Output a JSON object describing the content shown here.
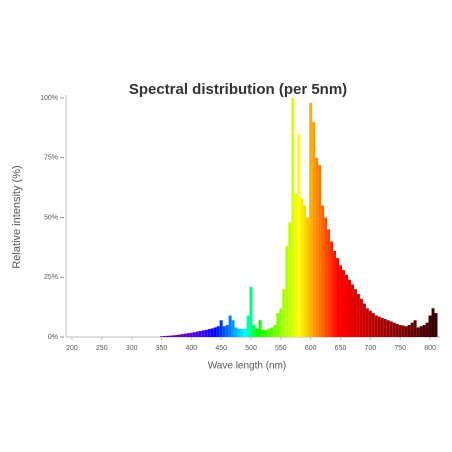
{
  "chart_data": {
    "type": "bar",
    "title": "Spectral distribution (per 5nm)",
    "x_label": "Wave length (nm)",
    "y_label": "Relative intensity (%)",
    "colormap": "wavelength",
    "x": [
      200,
      205,
      210,
      215,
      220,
      225,
      230,
      235,
      240,
      245,
      250,
      255,
      260,
      265,
      270,
      275,
      280,
      285,
      290,
      295,
      300,
      305,
      310,
      315,
      320,
      325,
      330,
      335,
      340,
      345,
      350,
      355,
      360,
      365,
      370,
      375,
      380,
      385,
      390,
      395,
      400,
      405,
      410,
      415,
      420,
      425,
      430,
      435,
      440,
      445,
      450,
      455,
      460,
      465,
      470,
      475,
      480,
      485,
      490,
      495,
      500,
      505,
      510,
      515,
      520,
      525,
      530,
      535,
      540,
      545,
      550,
      555,
      560,
      565,
      570,
      575,
      580,
      585,
      590,
      595,
      600,
      605,
      610,
      615,
      620,
      625,
      630,
      635,
      640,
      645,
      650,
      655,
      660,
      665,
      670,
      675,
      680,
      685,
      690,
      695,
      700,
      705,
      710,
      715,
      720,
      725,
      730,
      735,
      740,
      745,
      750,
      755,
      760,
      765,
      770,
      775,
      780,
      785,
      790,
      795,
      800,
      805,
      810
    ],
    "values": [
      0,
      0,
      0,
      0,
      0,
      0,
      0,
      0,
      0,
      0,
      0,
      0,
      0,
      0,
      0,
      0,
      0,
      0,
      0,
      0,
      0,
      0,
      0,
      0,
      0,
      0,
      0,
      0,
      0,
      0,
      0.3,
      0.4,
      0.5,
      0.6,
      0.7,
      0.8,
      1,
      1.2,
      1.4,
      1.6,
      1.8,
      2,
      2.3,
      2.5,
      2.8,
      3,
      3.3,
      3.6,
      4,
      4.5,
      7,
      4.5,
      5,
      9,
      7,
      4,
      3.5,
      3.3,
      3.5,
      9,
      21,
      5,
      3.5,
      7,
      3,
      3,
      3.5,
      4,
      5,
      10,
      12,
      20,
      38,
      48,
      100,
      60,
      85,
      58,
      55,
      50,
      98,
      90,
      75,
      72,
      55,
      50,
      45,
      40,
      36,
      33,
      30,
      28,
      26,
      24,
      22,
      20,
      18,
      16,
      14,
      12,
      11,
      10,
      9,
      8.5,
      8,
      7.5,
      7,
      6.5,
      6,
      5.5,
      5,
      4.8,
      4.5,
      5,
      6,
      7,
      4,
      4.5,
      5,
      6,
      9,
      12,
      10
    ],
    "xlim": [
      190,
      815
    ],
    "xticks": [
      200,
      250,
      300,
      350,
      400,
      450,
      500,
      550,
      600,
      650,
      700,
      750,
      800
    ],
    "ylim": [
      0,
      100
    ],
    "yticks": [
      {
        "value": 0,
        "label": "0%"
      },
      {
        "value": 25,
        "label": "25%"
      },
      {
        "value": 50,
        "label": "50%"
      },
      {
        "value": 75,
        "label": "75%"
      },
      {
        "value": 100,
        "label": "100%"
      }
    ]
  }
}
